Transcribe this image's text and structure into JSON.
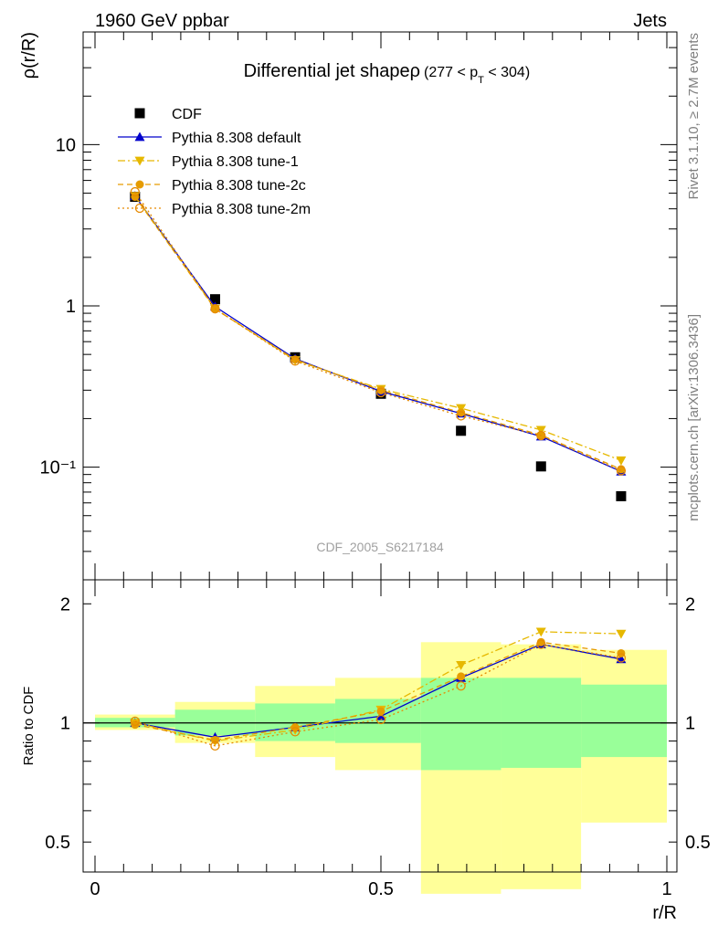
{
  "header": {
    "left": "1960 GeV ppbar",
    "right": "Jets"
  },
  "side_labels": {
    "rivet": "Rivet 3.1.10, ≥ 2.7M events",
    "mcplots": "mcplots.cern.ch [arXiv:1306.3436]"
  },
  "plot": {
    "title_main": "Differential jet shapeρ",
    "title_range_pre": "(277 < p",
    "title_range_sub": "T",
    "title_range_post": " < 304)",
    "analysis_label": "CDF_2005_S6217184"
  },
  "chart_data": [
    {
      "type": "line",
      "ylabel": "ρ(r/R)",
      "xlim": [
        -0.02,
        1.02
      ],
      "ylim": [
        0.02,
        50
      ],
      "yscale": "log",
      "yticks": [
        {
          "value": 10,
          "label": "10"
        },
        {
          "value": 1,
          "label": "1"
        },
        {
          "value": 0.1,
          "label": "10⁻¹"
        }
      ],
      "x": [
        0.07,
        0.21,
        0.35,
        0.5,
        0.64,
        0.78,
        0.92
      ],
      "legend_position": "top-left",
      "series": [
        {
          "name": "CDF",
          "marker": "square",
          "color": "#000000",
          "dash": "",
          "values": [
            4.75,
            1.1,
            0.48,
            0.285,
            0.168,
            0.101,
            0.066
          ]
        },
        {
          "name": "Pythia 8.308 default",
          "marker": "triangle-up",
          "color": "#0000cc",
          "dash": "",
          "values": [
            4.8,
            0.99,
            0.47,
            0.295,
            0.215,
            0.155,
            0.094
          ]
        },
        {
          "name": "Pythia 8.308 tune-1",
          "marker": "triangle-down",
          "color": "#e6b800",
          "dash": "8,3,2,3",
          "values": [
            4.8,
            0.96,
            0.46,
            0.305,
            0.232,
            0.17,
            0.11
          ]
        },
        {
          "name": "Pythia 8.308 tune-2c",
          "marker": "circle",
          "color": "#e69c00",
          "dash": "6,4",
          "values": [
            4.75,
            0.955,
            0.465,
            0.3,
            0.218,
            0.158,
            0.097
          ]
        },
        {
          "name": "Pythia 8.308 tune-2m",
          "marker": "circle-open",
          "color": "#e68a00",
          "dash": "2,3",
          "values": [
            5.1,
            0.96,
            0.455,
            0.29,
            0.208,
            0.157,
            0.095
          ]
        }
      ]
    },
    {
      "type": "line",
      "xlabel": "r/R",
      "ylabel": "Ratio to CDF",
      "ylim": [
        0.42,
        2.3
      ],
      "yscale": "log",
      "yticks": [
        {
          "value": 2,
          "label": "2"
        },
        {
          "value": 1,
          "label": "1"
        },
        {
          "value": 0.5,
          "label": "0.5"
        }
      ],
      "xticks": [
        {
          "value": 0,
          "label": "0"
        },
        {
          "value": 0.5,
          "label": "0.5"
        },
        {
          "value": 1,
          "label": "1"
        }
      ],
      "reference_line": 1,
      "bands": {
        "bin_edges": [
          0,
          0.14,
          0.28,
          0.42,
          0.57,
          0.71,
          0.85,
          1.0
        ],
        "yellow": [
          [
            0.96,
            1.05
          ],
          [
            0.89,
            1.13
          ],
          [
            0.82,
            1.24
          ],
          [
            0.76,
            1.3
          ],
          [
            0.37,
            1.6
          ],
          [
            0.38,
            1.58
          ],
          [
            0.56,
            1.53
          ]
        ],
        "green": [
          [
            0.975,
            1.03
          ],
          [
            0.93,
            1.08
          ],
          [
            0.9,
            1.12
          ],
          [
            0.89,
            1.15
          ],
          [
            0.76,
            1.3
          ],
          [
            0.77,
            1.3
          ],
          [
            0.82,
            1.25
          ]
        ]
      },
      "x": [
        0.07,
        0.21,
        0.35,
        0.5,
        0.64,
        0.78,
        0.92
      ],
      "series": [
        {
          "name": "Pythia 8.308 default",
          "marker": "triangle-up",
          "color": "#0000cc",
          "dash": "",
          "values": [
            1.0,
            0.92,
            0.975,
            1.04,
            1.3,
            1.58,
            1.45
          ]
        },
        {
          "name": "Pythia 8.308 tune-1",
          "marker": "triangle-down",
          "color": "#e6b800",
          "dash": "8,3,2,3",
          "values": [
            1.0,
            0.9,
            0.96,
            1.08,
            1.4,
            1.7,
            1.68
          ]
        },
        {
          "name": "Pythia 8.308 tune-2c",
          "marker": "circle",
          "color": "#e69c00",
          "dash": "6,4",
          "values": [
            0.99,
            0.905,
            0.975,
            1.07,
            1.31,
            1.6,
            1.5
          ]
        },
        {
          "name": "Pythia 8.308 tune-2m",
          "marker": "circle-open",
          "color": "#e68a00",
          "dash": "2,3",
          "values": [
            1.01,
            0.875,
            0.95,
            1.02,
            1.24,
            1.58,
            1.46
          ]
        }
      ]
    }
  ]
}
